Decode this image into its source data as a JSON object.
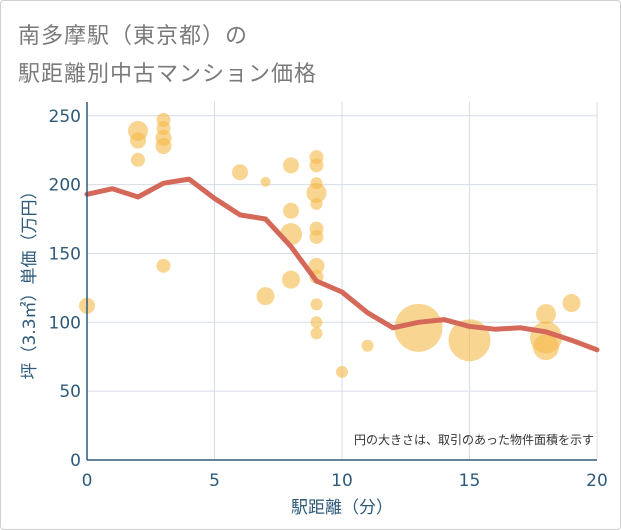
{
  "title_line1": "南多摩駅（東京都）の",
  "title_line2": "駅距離別中古マンション価格",
  "chart_data": {
    "type": "scatter",
    "xlabel": "駅距離（分）",
    "ylabel": "坪（3.3㎡）単価（万円）",
    "xlim": [
      0,
      20
    ],
    "ylim": [
      0,
      260
    ],
    "xticks": [
      0,
      5,
      10,
      15,
      20
    ],
    "yticks": [
      0,
      50,
      100,
      150,
      200,
      250
    ],
    "grid": true,
    "annotation": "円の大きさは、取引のあった物件面積を示す",
    "colors": {
      "bubble": "#f5b94a",
      "trend": "#d4695a",
      "axis": "#2e5a7a",
      "grid": "#d7dde6"
    },
    "bubbles": [
      {
        "x": 0,
        "y": 112,
        "s": 8
      },
      {
        "x": 2,
        "y": 239,
        "s": 10
      },
      {
        "x": 2,
        "y": 232,
        "s": 8
      },
      {
        "x": 2,
        "y": 218,
        "s": 7
      },
      {
        "x": 3,
        "y": 247,
        "s": 7
      },
      {
        "x": 3,
        "y": 241,
        "s": 7
      },
      {
        "x": 3,
        "y": 234,
        "s": 8
      },
      {
        "x": 3,
        "y": 228,
        "s": 8
      },
      {
        "x": 3,
        "y": 141,
        "s": 7
      },
      {
        "x": 6,
        "y": 209,
        "s": 8
      },
      {
        "x": 7,
        "y": 202,
        "s": 5
      },
      {
        "x": 7,
        "y": 119,
        "s": 9
      },
      {
        "x": 8,
        "y": 214,
        "s": 8
      },
      {
        "x": 8,
        "y": 181,
        "s": 8
      },
      {
        "x": 8,
        "y": 164,
        "s": 11
      },
      {
        "x": 8,
        "y": 131,
        "s": 9
      },
      {
        "x": 9,
        "y": 220,
        "s": 7
      },
      {
        "x": 9,
        "y": 214,
        "s": 7
      },
      {
        "x": 9,
        "y": 201,
        "s": 6
      },
      {
        "x": 9,
        "y": 194,
        "s": 10
      },
      {
        "x": 9,
        "y": 186,
        "s": 6
      },
      {
        "x": 9,
        "y": 168,
        "s": 7
      },
      {
        "x": 9,
        "y": 162,
        "s": 7
      },
      {
        "x": 9,
        "y": 141,
        "s": 8
      },
      {
        "x": 9,
        "y": 133,
        "s": 7
      },
      {
        "x": 9,
        "y": 113,
        "s": 6
      },
      {
        "x": 9,
        "y": 100,
        "s": 6
      },
      {
        "x": 9,
        "y": 92,
        "s": 6
      },
      {
        "x": 10,
        "y": 64,
        "s": 6
      },
      {
        "x": 11,
        "y": 83,
        "s": 6
      },
      {
        "x": 13,
        "y": 96,
        "s": 24
      },
      {
        "x": 15,
        "y": 87,
        "s": 21
      },
      {
        "x": 18,
        "y": 106,
        "s": 10
      },
      {
        "x": 18,
        "y": 89,
        "s": 16
      },
      {
        "x": 18,
        "y": 82,
        "s": 13
      },
      {
        "x": 19,
        "y": 114,
        "s": 9
      }
    ],
    "trend": {
      "x": [
        0,
        1,
        2,
        3,
        4,
        5,
        6,
        7,
        8,
        9,
        10,
        11,
        12,
        13,
        14,
        15,
        16,
        17,
        18,
        19,
        20
      ],
      "y": [
        193,
        197,
        191,
        201,
        204,
        190,
        178,
        175,
        155,
        130,
        122,
        107,
        96,
        100,
        102,
        97,
        95,
        96,
        93,
        87,
        80
      ]
    }
  }
}
